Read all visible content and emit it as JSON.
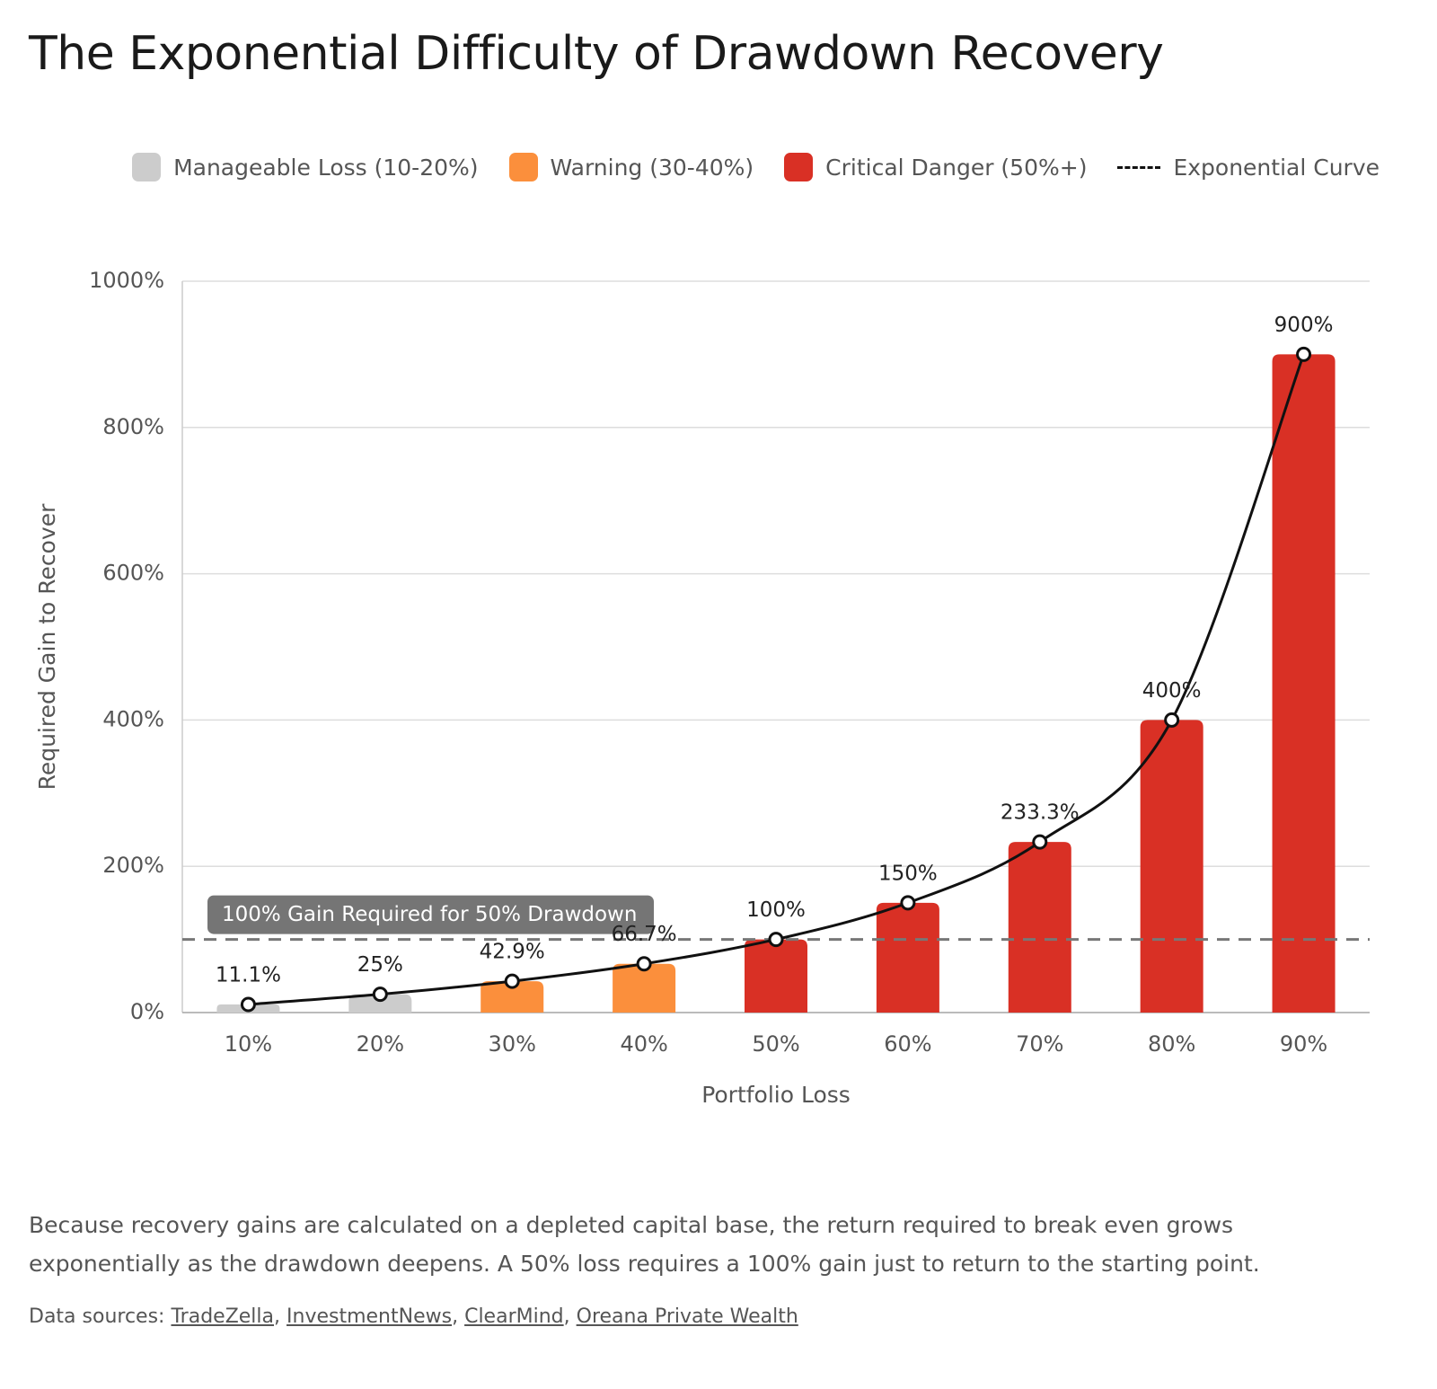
{
  "chart_data": {
    "type": "bar",
    "title": "The Exponential Difficulty of Drawdown Recovery",
    "x_label": "Portfolio Loss",
    "y_label": "Required Gain to Recover",
    "categories": [
      "10%",
      "20%",
      "30%",
      "40%",
      "50%",
      "60%",
      "70%",
      "80%",
      "90%"
    ],
    "values": [
      11.1,
      25,
      42.9,
      66.7,
      100,
      150,
      233.3,
      400,
      900
    ],
    "value_labels": [
      "11.1%",
      "25%",
      "42.9%",
      "66.7%",
      "100%",
      "150%",
      "233.3%",
      "400%",
      "900%"
    ],
    "bar_colors": [
      "#cccccc",
      "#cccccc",
      "#fb8f3c",
      "#fb8f3c",
      "#d93025",
      "#d93025",
      "#d93025",
      "#d93025",
      "#d93025"
    ],
    "line": {
      "name": "Exponential Curve",
      "color": "#111111"
    },
    "legend": [
      {
        "name": "Manageable Loss (10-20%)",
        "color": "#cccccc"
      },
      {
        "name": "Warning (30-40%)",
        "color": "#fb8f3c"
      },
      {
        "name": "Critical Danger (50%+)",
        "color": "#d93025"
      }
    ],
    "reference_line": {
      "value": 100,
      "label": "100% Gain Required for 50% Drawdown",
      "color": "#777777"
    },
    "ylim": [
      0,
      1000
    ],
    "yticks": [
      {
        "value": 0,
        "label": "0%"
      },
      {
        "value": 200,
        "label": "200%"
      },
      {
        "value": 400,
        "label": "400%"
      },
      {
        "value": 600,
        "label": "600%"
      },
      {
        "value": 800,
        "label": "800%"
      },
      {
        "value": 1000,
        "label": "1000%"
      }
    ],
    "grid": true
  },
  "footer": {
    "description": "Because recovery gains are calculated on a depleted capital base, the return required to break even grows exponentially as the drawdown deepens. A 50% loss requires a 100% gain just to return to the starting point.",
    "sources_label": "Data sources:",
    "separator": ",",
    "sources": [
      "TradeZella",
      "InvestmentNews",
      "ClearMind",
      "Oreana Private Wealth"
    ]
  }
}
